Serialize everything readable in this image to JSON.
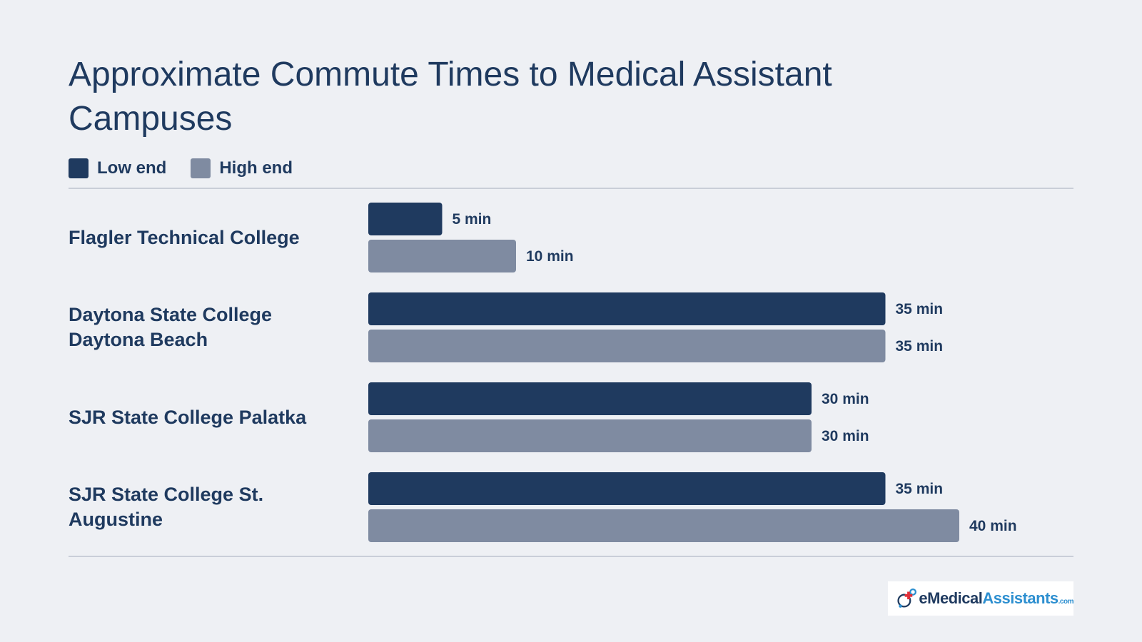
{
  "chart_data": {
    "type": "bar",
    "orientation": "horizontal",
    "title": "Approximate Commute Times to Medical Assistant Campuses",
    "categories": [
      "Flagler Technical College",
      "Daytona State College\nDaytona Beach",
      "SJR State College Palatka",
      "SJR State College St.\nAugustine"
    ],
    "series": [
      {
        "name": "Low end",
        "values": [
          5,
          35,
          30,
          35
        ],
        "color": "#1f3a5f"
      },
      {
        "name": "High end",
        "values": [
          10,
          35,
          30,
          40
        ],
        "color": "#7f8ba1"
      }
    ],
    "unit": "min",
    "xlim": [
      0,
      40
    ],
    "legend": "top-left",
    "grid": false
  },
  "logo": {
    "text_e": "e",
    "text_medical": "Medical",
    "text_assistants": "Assistants",
    "text_com": ".com",
    "icon": "medical-cross-logo-icon"
  }
}
